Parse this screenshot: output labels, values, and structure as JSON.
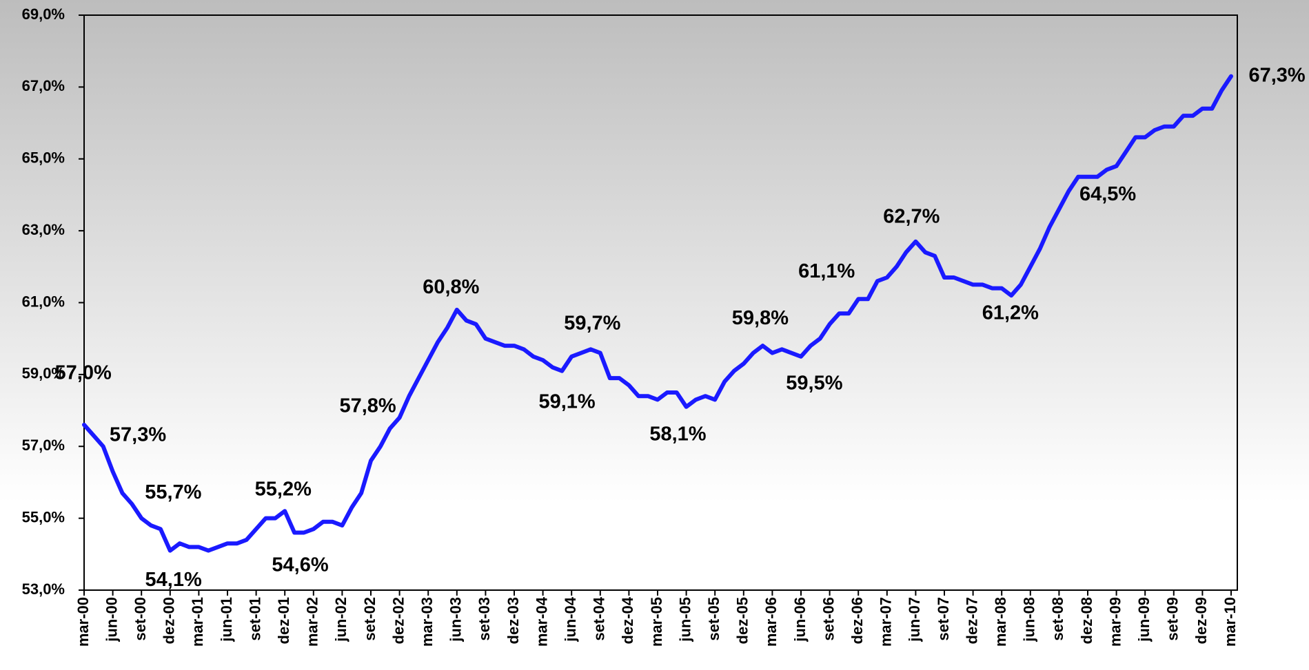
{
  "chart_data": {
    "type": "line",
    "categories": [
      "mar-00",
      null,
      null,
      "jun-00",
      null,
      null,
      "set-00",
      null,
      null,
      "dez-00",
      null,
      null,
      "mar-01",
      null,
      null,
      "jun-01",
      null,
      null,
      "set-01",
      null,
      null,
      "dez-01",
      null,
      null,
      "mar-02",
      null,
      null,
      "jun-02",
      null,
      null,
      "set-02",
      null,
      null,
      "dez-02",
      null,
      null,
      "mar-03",
      null,
      null,
      "jun-03",
      null,
      null,
      "set-03",
      null,
      null,
      "dez-03",
      null,
      null,
      "mar-04",
      null,
      null,
      "jun-04",
      null,
      null,
      "set-04",
      null,
      null,
      "dez-04",
      null,
      null,
      "mar-05",
      null,
      null,
      "jun-05",
      null,
      null,
      "set-05",
      null,
      null,
      "dez-05",
      null,
      null,
      "mar-06",
      null,
      null,
      "jun-06",
      null,
      null,
      "set-06",
      null,
      null,
      "dez-06",
      null,
      null,
      "mar-07",
      null,
      null,
      "jun-07",
      null,
      null,
      "set-07",
      null,
      null,
      "dez-07",
      null,
      null,
      "mar-08",
      null,
      null,
      "jun-08",
      null,
      null,
      "set-08",
      null,
      null,
      "dez-08",
      null,
      null,
      "mar-09",
      null,
      null,
      "jun-09",
      null,
      null,
      "set-09",
      null,
      null,
      "dez-09",
      null,
      null,
      "mar-10"
    ],
    "series": [
      {
        "color": "#1a1aff",
        "values": [
          57.6,
          57.3,
          57.0,
          56.3,
          55.7,
          55.4,
          55.0,
          54.8,
          54.7,
          54.1,
          54.3,
          54.2,
          54.2,
          54.1,
          54.2,
          54.3,
          54.3,
          54.4,
          54.7,
          55.0,
          55.0,
          55.2,
          54.6,
          54.6,
          54.7,
          54.9,
          54.9,
          54.8,
          55.3,
          55.7,
          56.6,
          57.0,
          57.5,
          57.8,
          58.4,
          58.9,
          59.4,
          59.9,
          60.3,
          60.8,
          60.5,
          60.4,
          60.0,
          59.9,
          59.8,
          59.8,
          59.7,
          59.5,
          59.4,
          59.2,
          59.1,
          59.5,
          59.6,
          59.7,
          59.6,
          58.9,
          58.9,
          58.7,
          58.4,
          58.4,
          58.3,
          58.5,
          58.5,
          58.1,
          58.3,
          58.4,
          58.3,
          58.8,
          59.1,
          59.3,
          59.6,
          59.8,
          59.6,
          59.7,
          59.6,
          59.5,
          59.8,
          60.0,
          60.4,
          60.7,
          60.7,
          61.1,
          61.1,
          61.6,
          61.7,
          62.0,
          62.4,
          62.7,
          62.4,
          62.3,
          61.7,
          61.7,
          61.6,
          61.5,
          61.5,
          61.4,
          61.4,
          61.2,
          61.5,
          62.0,
          62.5,
          63.1,
          63.6,
          64.1,
          64.5,
          64.5,
          64.5,
          64.7,
          64.8,
          65.2,
          65.6,
          65.6,
          65.8,
          65.9,
          65.9,
          66.2,
          66.2,
          66.4,
          66.4,
          66.9,
          67.3
        ],
        "value_labels": [
          null,
          "57,3%",
          "57,0%",
          null,
          "55,7%",
          null,
          null,
          null,
          null,
          "54,1%",
          null,
          null,
          null,
          null,
          null,
          null,
          null,
          null,
          null,
          null,
          null,
          "55,2%",
          "54,6%",
          null,
          null,
          null,
          null,
          null,
          null,
          null,
          null,
          null,
          null,
          "57,8%",
          null,
          null,
          null,
          null,
          null,
          "60,8%",
          null,
          null,
          null,
          null,
          null,
          null,
          null,
          null,
          null,
          null,
          "59,1%",
          null,
          null,
          "59,7%",
          null,
          null,
          null,
          null,
          null,
          null,
          null,
          null,
          null,
          "58,1%",
          null,
          null,
          null,
          null,
          null,
          null,
          null,
          "59,8%",
          null,
          null,
          null,
          "59,5%",
          null,
          null,
          null,
          null,
          null,
          "61,1%",
          null,
          null,
          null,
          null,
          null,
          "62,7%",
          null,
          null,
          null,
          null,
          null,
          null,
          null,
          null,
          null,
          "61,2%",
          null,
          null,
          null,
          null,
          null,
          null,
          null,
          "64,5%",
          null,
          null,
          null,
          null,
          null,
          null,
          null,
          null,
          null,
          null,
          null,
          null,
          null,
          null,
          "67,3%"
        ]
      }
    ],
    "ylim": [
      53,
      69
    ],
    "yticks": [
      {
        "value": 53,
        "label": "53,0%"
      },
      {
        "value": 55,
        "label": "55,0%"
      },
      {
        "value": 57,
        "label": "57,0%"
      },
      {
        "value": 59,
        "label": "59,0%"
      },
      {
        "value": 61,
        "label": "61,0%"
      },
      {
        "value": 63,
        "label": "63,0%"
      },
      {
        "value": 65,
        "label": "65,0%"
      },
      {
        "value": 67,
        "label": "67,0%"
      },
      {
        "value": 69,
        "label": "69,0%"
      }
    ]
  }
}
